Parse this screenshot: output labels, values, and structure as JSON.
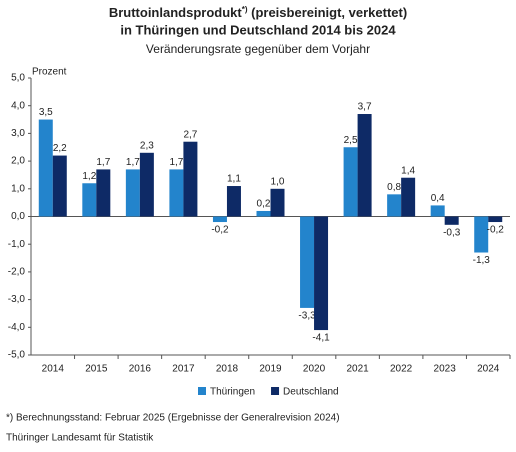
{
  "chart_data": {
    "type": "bar",
    "title": "Bruttoinlandsprodukt",
    "title_marker": "*)",
    "title_rest": "(preisbereinigt, verkettet)",
    "title_line2": "in Thüringen und Deutschland 2014 bis 2024",
    "subtitle": "Veränderungsrate gegenüber dem Vorjahr",
    "y_label": "Prozent",
    "categories": [
      "2014",
      "2015",
      "2016",
      "2017",
      "2018",
      "2019",
      "2020",
      "2021",
      "2022",
      "2023",
      "2024"
    ],
    "series": [
      {
        "name": "Thüringen",
        "color": "#2384cc",
        "values": [
          3.5,
          1.2,
          1.7,
          1.7,
          -0.2,
          0.2,
          -3.3,
          2.5,
          0.8,
          0.4,
          -1.3
        ],
        "value_labels": [
          "3,5",
          "1,2",
          "1,7",
          "1,7",
          "-0,2",
          "0,2",
          "-3,3",
          "2,5",
          "0,8",
          "0,4",
          "-1,3"
        ]
      },
      {
        "name": "Deutschland",
        "color": "#0e2a66",
        "values": [
          2.2,
          1.7,
          2.3,
          2.7,
          1.1,
          1.0,
          -4.1,
          3.7,
          1.4,
          -0.3,
          -0.2
        ],
        "value_labels": [
          "2,2",
          "1,7",
          "2,3",
          "2,7",
          "1,1",
          "1,0",
          "-4,1",
          "3,7",
          "1,4",
          "-0,3",
          "-0,2"
        ]
      }
    ],
    "ylim": [
      -5,
      5
    ],
    "yticks": [
      {
        "value": -5,
        "label": "-5,0"
      },
      {
        "value": -4,
        "label": "-4,0"
      },
      {
        "value": -3,
        "label": "-3,0"
      },
      {
        "value": -2,
        "label": "-2,0"
      },
      {
        "value": -1,
        "label": "-1,0"
      },
      {
        "value": 0,
        "label": "0,0"
      },
      {
        "value": 1,
        "label": "1,0"
      },
      {
        "value": 2,
        "label": "2,0"
      },
      {
        "value": 3,
        "label": "3,0"
      },
      {
        "value": 4,
        "label": "4,0"
      },
      {
        "value": 5,
        "label": "5,0"
      }
    ],
    "grid": false,
    "footnote": "*) Berechnungsstand: Februar 2025 (Ergebnisse der Generalrevision 2024)",
    "source": "Thüringer Landesamt für Statistik"
  }
}
